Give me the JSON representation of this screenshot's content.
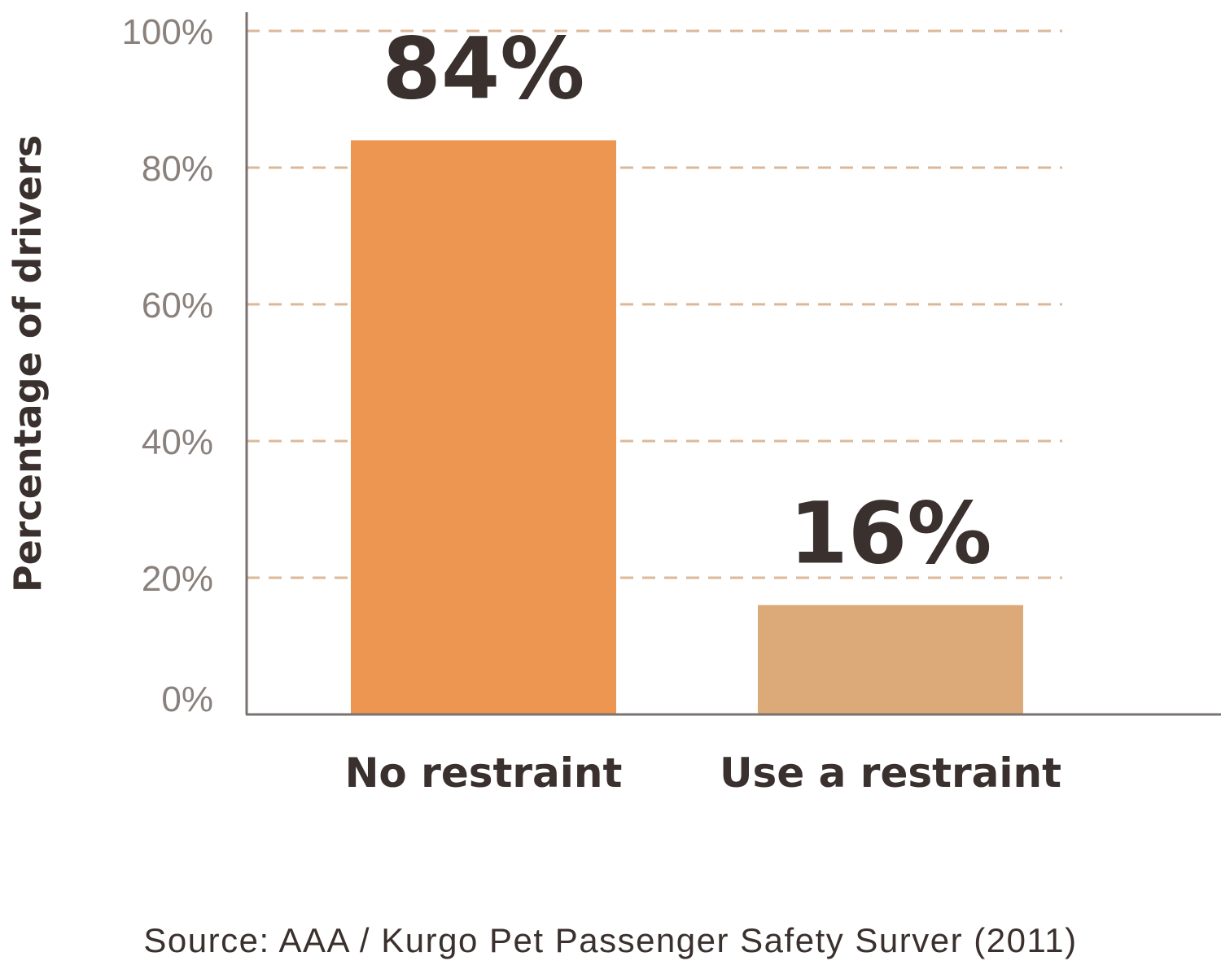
{
  "chart_data": {
    "type": "bar",
    "categories": [
      "No restraint",
      "Use a restraint"
    ],
    "values": [
      84,
      16
    ],
    "value_labels": [
      "84%",
      "16%"
    ],
    "bar_colors": [
      "#ed9651",
      "#dcaa79"
    ],
    "ylabel": "Percentage of drivers",
    "ylim": [
      0,
      100
    ],
    "yticks": [
      0,
      20,
      40,
      60,
      80,
      100
    ],
    "ytick_labels": [
      "0%",
      "20%",
      "40%",
      "60%",
      "80%",
      "100%"
    ],
    "grid": true,
    "grid_color": "#dcb89a",
    "axis_color": "#7a7270",
    "text_color": "#3a302d"
  },
  "source": "Source: AAA / Kurgo Pet Passenger Safety Surver (2011)"
}
